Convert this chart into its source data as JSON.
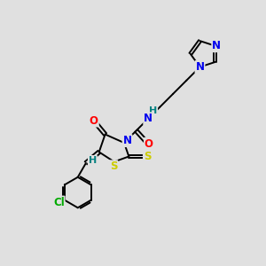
{
  "bg_color": "#e0e0e0",
  "bond_color": "#000000",
  "atom_colors": {
    "N": "#0000ee",
    "O": "#ff0000",
    "S": "#cccc00",
    "Cl": "#00aa00",
    "H_teal": "#008080",
    "C": "#000000"
  },
  "lw": 1.4,
  "fs": 8.5
}
